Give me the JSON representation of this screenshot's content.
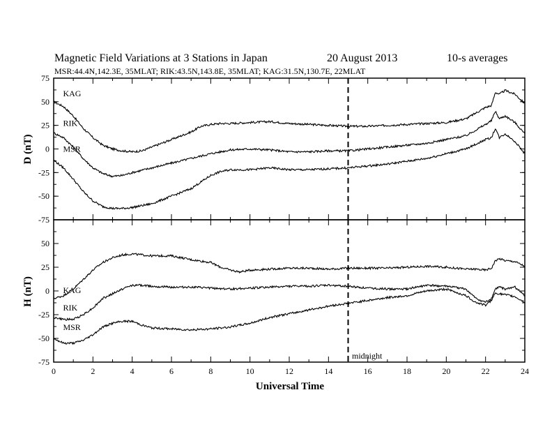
{
  "header": {
    "title": "Magnetic Field Variations at 3 Stations in Japan",
    "date": "20  August  2013",
    "averaging": "10-s averages",
    "subtitle": "MSR:44.4N,142.3E, 35MLAT;   RIK:43.5N,143.8E, 35MLAT;   KAG:31.5N,130.7E, 22MLAT"
  },
  "chart_data": [
    {
      "type": "line",
      "panel": "D",
      "ylabel": "D (nT)",
      "xlabel": "",
      "xlim": [
        0,
        24
      ],
      "ylim": [
        -75,
        75
      ],
      "yticks": [
        75,
        50,
        25,
        0,
        -25,
        -50,
        -75
      ],
      "series": [
        {
          "name": "KAG",
          "x": [
            0,
            0.5,
            1,
            1.5,
            2,
            2.5,
            3,
            3.5,
            4,
            4.5,
            5,
            6,
            7,
            7.5,
            8,
            8.5,
            9,
            10,
            11,
            12,
            13,
            14,
            15,
            16,
            17,
            18,
            19,
            20,
            21,
            21.5,
            22,
            22.3,
            22.5,
            22.7,
            23,
            23.5,
            24
          ],
          "y": [
            50,
            45,
            35,
            22,
            12,
            4,
            0,
            -2,
            -3,
            -2,
            2,
            10,
            18,
            24,
            26,
            27,
            27,
            28,
            29,
            27,
            26,
            25,
            24,
            24,
            25,
            26,
            27,
            28,
            32,
            38,
            44,
            46,
            60,
            58,
            62,
            58,
            48
          ]
        },
        {
          "name": "RIK",
          "x": [
            0,
            0.5,
            1,
            1.5,
            2,
            2.5,
            3,
            3.5,
            4,
            5,
            6,
            7,
            8,
            8.5,
            9,
            10,
            11,
            12,
            13,
            14,
            15,
            16,
            17,
            18,
            19,
            20,
            21,
            21.5,
            22,
            22.3,
            22.5,
            22.7,
            23,
            23.5,
            24
          ],
          "y": [
            17,
            12,
            2,
            -10,
            -20,
            -26,
            -29,
            -28,
            -25,
            -20,
            -15,
            -10,
            -5,
            -3,
            -1,
            0,
            -1,
            -3,
            -3,
            -2,
            -2,
            0,
            2,
            4,
            6,
            10,
            14,
            20,
            26,
            30,
            40,
            32,
            35,
            28,
            16
          ]
        },
        {
          "name": "MSR",
          "x": [
            0,
            0.5,
            1,
            1.5,
            2,
            2.5,
            3,
            3.5,
            4,
            5,
            6,
            7,
            7.5,
            8,
            8.5,
            9,
            10,
            11,
            12,
            13,
            14,
            15,
            16,
            17,
            18,
            19,
            20,
            21,
            21.5,
            22,
            22.3,
            22.5,
            22.7,
            23,
            23.5,
            24
          ],
          "y": [
            -12,
            -20,
            -32,
            -45,
            -55,
            -61,
            -63,
            -63,
            -62,
            -58,
            -50,
            -42,
            -35,
            -28,
            -24,
            -22,
            -22,
            -20,
            -22,
            -22,
            -21,
            -20,
            -18,
            -16,
            -13,
            -10,
            -5,
            0,
            5,
            10,
            12,
            22,
            12,
            16,
            8,
            -5
          ]
        }
      ],
      "labels": [
        "KAG",
        "RIK",
        "MSR"
      ]
    },
    {
      "type": "line",
      "panel": "H",
      "ylabel": "H (nT)",
      "xlabel": "Universal Time",
      "xlim": [
        0,
        24
      ],
      "ylim": [
        -75,
        75
      ],
      "xticks": [
        0,
        2,
        4,
        6,
        8,
        10,
        12,
        14,
        16,
        18,
        20,
        22,
        24
      ],
      "yticks": [
        50,
        25,
        0,
        -25,
        -50,
        -75
      ],
      "series": [
        {
          "name": "KAG",
          "x": [
            0,
            0.5,
            1,
            1.5,
            2,
            2.5,
            3,
            3.5,
            4,
            4.5,
            5,
            5.5,
            6,
            7,
            8,
            8.5,
            9,
            9.5,
            10,
            11,
            12,
            13,
            14,
            15,
            16,
            17,
            18,
            19,
            20,
            21,
            21.5,
            22,
            22.3,
            22.5,
            22.7,
            23,
            23.5,
            24
          ],
          "y": [
            -8,
            -5,
            2,
            12,
            22,
            30,
            35,
            38,
            39,
            38,
            37,
            37,
            37,
            33,
            30,
            25,
            22,
            20,
            22,
            23,
            24,
            24,
            23,
            24,
            24,
            24,
            25,
            26,
            25,
            23,
            23,
            22,
            24,
            32,
            34,
            32,
            31,
            26
          ]
        },
        {
          "name": "RIK",
          "x": [
            0,
            0.5,
            1,
            1.5,
            2,
            2.5,
            3,
            3.5,
            4,
            4.5,
            5,
            6,
            7,
            8,
            9,
            10,
            11,
            12,
            13,
            14,
            15,
            16,
            17,
            18,
            19,
            20,
            21,
            21.5,
            22,
            22.3,
            22.5,
            22.7,
            23,
            23.5,
            24
          ],
          "y": [
            -28,
            -30,
            -30,
            -25,
            -18,
            -8,
            -3,
            2,
            6,
            6,
            5,
            4,
            4,
            3,
            2,
            3,
            4,
            5,
            5,
            6,
            5,
            3,
            2,
            2,
            6,
            5,
            2,
            -8,
            -12,
            -8,
            2,
            4,
            2,
            4,
            -5
          ]
        },
        {
          "name": "MSR",
          "x": [
            0,
            0.5,
            1,
            1.5,
            2,
            2.5,
            3,
            3.5,
            4,
            4.5,
            5,
            6,
            7,
            8,
            9,
            10,
            11,
            12,
            13,
            14,
            15,
            16,
            17,
            18,
            19,
            20,
            21,
            21.5,
            22,
            22.3,
            22.5,
            22.7,
            23,
            23.5,
            24
          ],
          "y": [
            -50,
            -55,
            -55,
            -52,
            -46,
            -38,
            -34,
            -32,
            -32,
            -36,
            -39,
            -40,
            -41,
            -40,
            -38,
            -34,
            -28,
            -24,
            -20,
            -16,
            -13,
            -10,
            -7,
            -5,
            0,
            2,
            -5,
            -12,
            -15,
            -10,
            -2,
            -3,
            -4,
            -6,
            -12
          ]
        }
      ],
      "labels": [
        "KAG",
        "RIK",
        "MSR"
      ]
    }
  ],
  "annotation": {
    "midnight_label": "midnight",
    "midnight_ut": 15
  }
}
